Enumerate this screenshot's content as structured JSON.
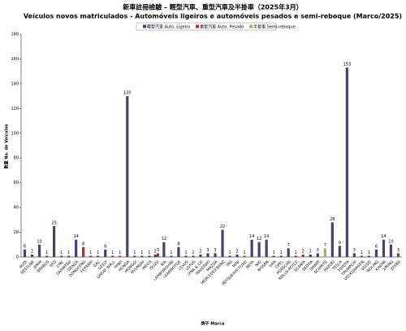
{
  "chart_data": {
    "type": "bar",
    "title": "新車註冊檢驗 – 輕型汽車、重型汽車及半掛車（2025年3月）",
    "subtitle": "Veículos novos matriculados  - Automóveis ligeiros e automóveis pesados e semi-reboque (Marco/2025)",
    "y_label": "數量 No. de Veículos",
    "x_label": "牌子 Marca",
    "categories": [
      "AUDI",
      "BESTUNE",
      "BMW",
      "BRABUS",
      "BYD",
      "CMC",
      "DAIHATSU",
      "DENZA",
      "DONGFENG",
      "FERRARI",
      "GAC",
      "GEELY",
      "GREAT WALL",
      "HINO",
      "HONDA",
      "HONGQI",
      "HYUNDAI",
      "INEOS",
      "ISUZU",
      "KIA",
      "LAMBORGHINI",
      "LEAPMOTOR",
      "LEXUS",
      "LOTUS",
      "LYNK & CO",
      "MASERATI",
      "MAZDA",
      "MERCEDES BENZ",
      "MG",
      "MINI",
      "MITSUBISHI FUSO",
      "NETA",
      "NIO",
      "NISSAN",
      "ORA",
      "OPEL",
      "PORSCHE",
      "ROLLS-ROYCE",
      "SCANIA",
      "SKODA",
      "SMART",
      "SCHMITZ",
      "SUZUKI",
      "TESLA",
      "TOYOTA",
      "TRUMPCHI",
      "VOLKSWAGEN",
      "VOLVO",
      "WULING",
      "XIAOMI",
      "XPENG",
      "ZEEKR"
    ],
    "series": [
      {
        "name": "輕型汽車 Auto. Ligeiro",
        "color": "#4b3f72",
        "values": [
          6,
          2,
          10,
          1,
          25,
          1,
          1,
          14,
          null,
          1,
          1,
          6,
          1,
          null,
          130,
          1,
          1,
          1,
          2,
          12,
          1,
          8,
          1,
          1,
          2,
          3,
          3,
          22,
          1,
          2,
          null,
          14,
          12,
          14,
          1,
          1,
          7,
          1,
          null,
          2,
          3,
          null,
          28,
          9,
          153,
          3,
          1,
          1,
          6,
          14,
          10,
          null
        ]
      },
      {
        "name": "重型汽車 Auto. Pesado",
        "color": "#b0302f",
        "values": [
          null,
          null,
          null,
          null,
          null,
          null,
          null,
          null,
          8,
          null,
          null,
          null,
          null,
          1,
          null,
          null,
          null,
          null,
          3,
          null,
          null,
          null,
          null,
          null,
          null,
          null,
          null,
          null,
          null,
          null,
          1,
          null,
          null,
          null,
          null,
          null,
          null,
          null,
          2,
          null,
          null,
          null,
          null,
          null,
          null,
          null,
          null,
          null,
          null,
          null,
          null,
          3
        ]
      },
      {
        "name": "半掛車 Semi-reboque",
        "color": "#8fbc5a",
        "values": [
          null,
          null,
          null,
          null,
          null,
          null,
          null,
          null,
          null,
          null,
          null,
          null,
          null,
          null,
          null,
          null,
          null,
          null,
          null,
          null,
          null,
          null,
          null,
          null,
          null,
          null,
          null,
          null,
          null,
          null,
          null,
          null,
          null,
          null,
          null,
          null,
          null,
          null,
          null,
          null,
          null,
          7,
          null,
          null,
          null,
          null,
          null,
          null,
          null,
          null,
          null,
          null
        ]
      }
    ],
    "ylim": [
      0,
      180
    ],
    "yticks": [
      0,
      20,
      40,
      60,
      80,
      100,
      120,
      140,
      160,
      180
    ],
    "grid": false,
    "legend": "top"
  }
}
